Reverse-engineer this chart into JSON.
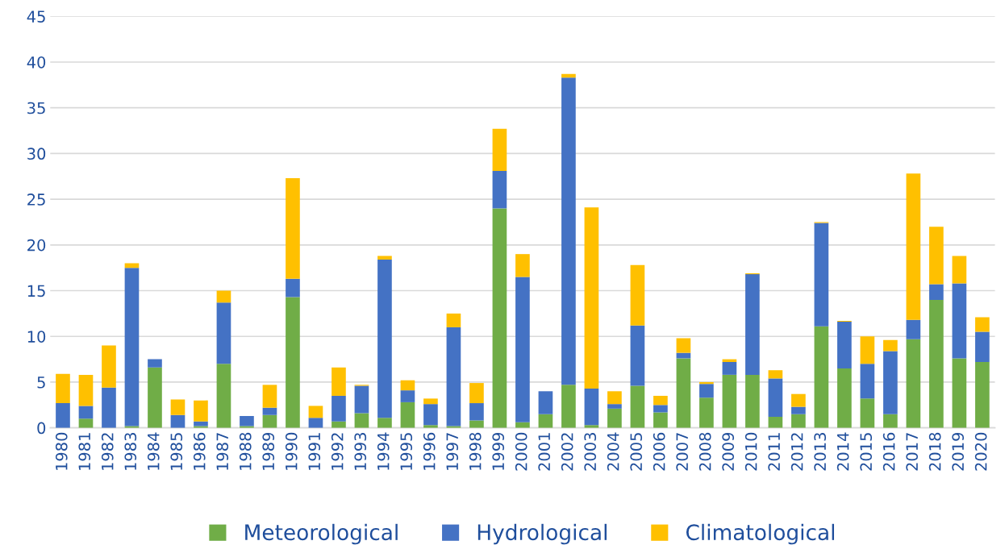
{
  "chart_data": {
    "type": "bar",
    "stacked": true,
    "categories": [
      "1980",
      "1981",
      "1982",
      "1983",
      "1984",
      "1985",
      "1986",
      "1987",
      "1988",
      "1989",
      "1990",
      "1991",
      "1992",
      "1993",
      "1994",
      "1995",
      "1996",
      "1997",
      "1998",
      "1999",
      "2000",
      "2001",
      "2002",
      "2003",
      "2004",
      "2005",
      "2006",
      "2007",
      "2008",
      "2009",
      "2010",
      "2011",
      "2012",
      "2013",
      "2014",
      "2015",
      "2016",
      "2017",
      "2018",
      "2019",
      "2020"
    ],
    "series": [
      {
        "name": "Meteorological",
        "color": "#70ad47",
        "values": [
          0,
          1.0,
          0,
          0.2,
          6.6,
          0,
          0.2,
          7.0,
          0.2,
          1.4,
          14.3,
          0,
          0.7,
          1.6,
          1.1,
          2.8,
          0.3,
          0.2,
          0.8,
          24.0,
          0.6,
          1.5,
          4.7,
          0.3,
          2.1,
          4.6,
          1.7,
          7.6,
          3.3,
          5.8,
          5.8,
          1.2,
          1.5,
          11.1,
          6.5,
          3.2,
          1.5,
          9.7,
          14.0,
          7.6,
          7.2
        ]
      },
      {
        "name": "Hydrological",
        "color": "#4472c4",
        "values": [
          2.7,
          1.4,
          4.4,
          17.3,
          0.9,
          1.4,
          0.5,
          6.7,
          1.1,
          0.8,
          2.0,
          1.1,
          2.8,
          3.0,
          17.3,
          1.3,
          2.3,
          10.8,
          1.9,
          4.1,
          15.9,
          2.5,
          33.6,
          4.0,
          0.5,
          6.6,
          0.8,
          0.6,
          1.5,
          1.4,
          11.0,
          4.2,
          0.8,
          11.3,
          5.1,
          3.8,
          6.9,
          2.1,
          1.7,
          8.2,
          3.3
        ]
      },
      {
        "name": "Climatological",
        "color": "#ffc000",
        "values": [
          3.2,
          3.4,
          4.6,
          0.5,
          0,
          1.7,
          2.3,
          1.3,
          0,
          2.5,
          11.0,
          1.3,
          3.1,
          0.1,
          0.4,
          1.1,
          0.6,
          1.5,
          2.2,
          4.6,
          2.5,
          0,
          0.4,
          19.8,
          1.4,
          6.6,
          1.0,
          1.6,
          0.2,
          0.3,
          0.1,
          0.9,
          1.4,
          0.1,
          0.1,
          3.0,
          1.2,
          16.0,
          6.3,
          3.0,
          1.6
        ]
      }
    ],
    "ylim": [
      0,
      45
    ],
    "yticks": [
      0,
      5,
      10,
      15,
      20,
      25,
      30,
      35,
      40,
      45
    ],
    "grid": "y",
    "legend": "bottom"
  }
}
